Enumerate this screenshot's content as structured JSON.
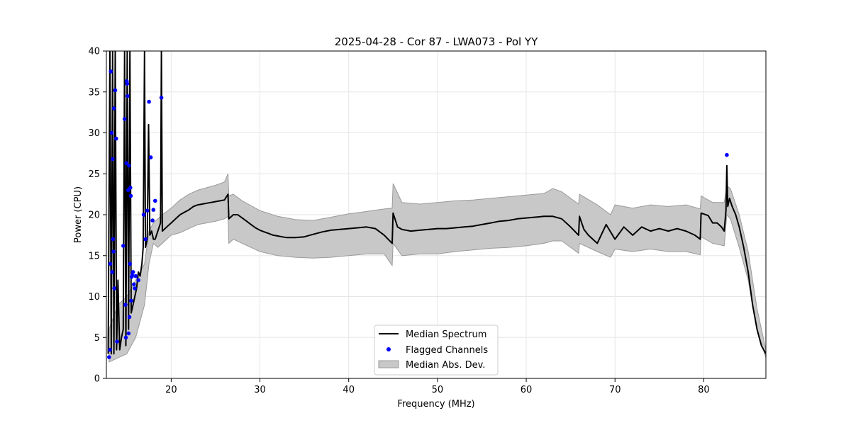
{
  "chart_data": {
    "type": "line",
    "title": "2025-04-28 - Cor 87 - LWA073 - Pol YY",
    "xlabel": "Frequency (MHz)",
    "ylabel": "Power (CPU)",
    "xlim": [
      12.7,
      87.0
    ],
    "ylim": [
      0,
      40
    ],
    "grid": true,
    "legend_placement": "bottom-center",
    "x_ticks": [
      20,
      30,
      40,
      50,
      60,
      70,
      80
    ],
    "y_ticks": [
      0,
      5,
      10,
      15,
      20,
      25,
      30,
      35,
      40
    ],
    "colors": {
      "median": "#000000",
      "flagged": "#0000ff",
      "mad_fill": "#c8c8c8",
      "mad_edge": "#9a9a9a"
    },
    "legend": [
      {
        "label": "Median Spectrum",
        "kind": "line"
      },
      {
        "label": "Flagged Channels",
        "kind": "dot"
      },
      {
        "label": "Median Abs. Dev.",
        "kind": "patch"
      }
    ],
    "series": [
      {
        "name": "Median Spectrum",
        "x": [
          12.9,
          13.1,
          13.25,
          13.4,
          13.55,
          13.7,
          13.85,
          14.0,
          14.2,
          14.4,
          14.6,
          14.75,
          14.9,
          15.05,
          15.2,
          15.35,
          15.5,
          15.7,
          15.9,
          16.1,
          16.3,
          16.5,
          16.7,
          16.85,
          17.0,
          17.1,
          17.3,
          17.45,
          17.6,
          17.8,
          18.0,
          18.2,
          18.5,
          18.8,
          18.9,
          19.0,
          19.5,
          20.0,
          20.5,
          21.0,
          21.5,
          22.0,
          22.5,
          23.0,
          23.5,
          24.0,
          24.5,
          25.0,
          25.5,
          26.0,
          26.4,
          26.5,
          27.0,
          27.5,
          28.0,
          28.5,
          29.0,
          29.5,
          30.0,
          30.5,
          31.0,
          31.5,
          32.0,
          32.5,
          33.0,
          33.5,
          34.0,
          35.0,
          36.0,
          37.0,
          38.0,
          39.0,
          40.0,
          41.0,
          42.0,
          43.0,
          44.0,
          44.9,
          45.0,
          45.5,
          46.0,
          47.0,
          48.0,
          49.0,
          50.0,
          51.0,
          52.0,
          53.0,
          54.0,
          55.0,
          56.0,
          57.0,
          58.0,
          59.0,
          60.0,
          61.0,
          62.0,
          63.0,
          64.0,
          65.0,
          65.9,
          66.0,
          66.5,
          67.0,
          68.0,
          69.0,
          70.0,
          71.0,
          72.0,
          73.0,
          74.0,
          75.0,
          76.0,
          77.0,
          78.0,
          79.0,
          79.6,
          79.7,
          80.5,
          81.0,
          81.5,
          82.0,
          82.3,
          82.5,
          82.6,
          82.7,
          82.9,
          83.2,
          83.6,
          84.0,
          84.5,
          85.0,
          85.5,
          86.0,
          86.5,
          87.0
        ],
        "y": [
          3,
          40,
          3,
          40,
          3,
          40,
          3.5,
          12,
          3.5,
          5,
          6,
          40,
          4,
          40,
          6,
          40,
          8,
          9,
          10,
          11,
          13,
          12.5,
          14,
          16,
          40,
          16,
          17,
          31,
          17.5,
          18,
          17,
          17,
          18,
          19,
          40,
          18,
          18.5,
          19,
          19.5,
          20,
          20.3,
          20.6,
          21,
          21.2,
          21.3,
          21.4,
          21.5,
          21.6,
          21.7,
          21.8,
          22.5,
          19.5,
          20,
          20,
          19.6,
          19.2,
          18.8,
          18.4,
          18.1,
          17.9,
          17.7,
          17.5,
          17.4,
          17.3,
          17.2,
          17.2,
          17.2,
          17.3,
          17.6,
          17.9,
          18.1,
          18.2,
          18.3,
          18.4,
          18.5,
          18.3,
          17.5,
          16.5,
          20.2,
          18.5,
          18.2,
          18,
          18.1,
          18.2,
          18.3,
          18.3,
          18.4,
          18.5,
          18.6,
          18.8,
          19,
          19.2,
          19.3,
          19.5,
          19.6,
          19.7,
          19.8,
          19.8,
          19.5,
          18.5,
          17.5,
          19.8,
          18.2,
          17.5,
          16.5,
          18.8,
          17,
          18.5,
          17.5,
          18.5,
          18,
          18.3,
          18,
          18.3,
          18,
          17.5,
          17,
          20.2,
          19.9,
          19,
          19,
          18.5,
          18,
          20.5,
          26,
          21,
          22,
          21,
          20,
          18.5,
          16,
          13,
          9,
          6,
          4,
          3
        ]
      },
      {
        "name": "Median Abs. Dev.",
        "x": [
          13.0,
          14.0,
          15.0,
          15.5,
          16.0,
          16.5,
          17.0,
          17.5,
          18.0,
          18.5,
          19.0,
          20.0,
          21.0,
          22.0,
          23.0,
          24.0,
          25.0,
          26.0,
          26.4,
          26.5,
          27.0,
          28.0,
          30.0,
          32.0,
          34.0,
          36.0,
          38.0,
          40.0,
          42.0,
          44.0,
          44.9,
          45.0,
          46.0,
          48.0,
          50.0,
          52.0,
          54.0,
          56.0,
          58.0,
          60.0,
          62.0,
          63.0,
          64.0,
          65.9,
          66.0,
          68.0,
          69.5,
          70.0,
          72.0,
          74.0,
          76.0,
          78.0,
          79.6,
          79.7,
          81.0,
          82.3,
          82.6,
          83.0,
          84.0,
          85.0,
          86.0,
          87.0
        ],
        "upper": [
          6,
          9,
          10,
          11,
          12,
          13,
          14,
          18,
          19,
          19.5,
          20,
          20.8,
          21.8,
          22.5,
          23,
          23.3,
          23.6,
          24,
          25,
          22.3,
          22.5,
          21.7,
          20.5,
          19.8,
          19.4,
          19.3,
          19.7,
          20.1,
          20.4,
          20.7,
          20.8,
          23.8,
          21.5,
          21.3,
          21.5,
          21.7,
          21.8,
          22,
          22.2,
          22.4,
          22.6,
          23.2,
          22.8,
          21.3,
          22.5,
          21.2,
          20,
          21.2,
          20.8,
          21.2,
          21,
          21.2,
          20.7,
          22.3,
          21.5,
          21.5,
          23.5,
          23.2,
          20,
          15.5,
          8.5,
          3.5
        ],
        "lower": [
          2,
          2.5,
          3,
          4,
          5,
          7,
          9,
          14,
          16.5,
          16,
          16.5,
          17.5,
          17.8,
          18.3,
          18.8,
          19,
          19.2,
          19.5,
          19.8,
          16.5,
          17,
          16.5,
          15.5,
          15,
          14.8,
          14.7,
          14.8,
          15,
          15.2,
          15.2,
          13.8,
          16.5,
          15,
          15.2,
          15.2,
          15.5,
          15.7,
          15.9,
          16,
          16.2,
          16.5,
          16.8,
          16.8,
          15.3,
          16.5,
          15.5,
          14.8,
          15.8,
          15.5,
          15.8,
          15.5,
          15.5,
          15.1,
          17.3,
          16.5,
          16.2,
          20,
          19.5,
          16,
          12,
          6,
          2.5
        ]
      },
      {
        "name": "Flagged Channels",
        "x": [
          13.0,
          13.1,
          13.15,
          13.2,
          13.3,
          13.35,
          13.4,
          13.45,
          13.5,
          13.55,
          13.6,
          13.7,
          13.8,
          13.9,
          14.6,
          14.75,
          14.85,
          14.9,
          14.95,
          15.0,
          15.05,
          15.1,
          15.15,
          15.2,
          15.25,
          15.3,
          15.35,
          15.4,
          15.45,
          15.5,
          15.55,
          15.6,
          15.7,
          15.8,
          15.9,
          16.0,
          16.3,
          16.9,
          17.1,
          17.3,
          17.5,
          17.7,
          17.9,
          18.0,
          18.2,
          18.9,
          82.6
        ],
        "y": [
          2.6,
          3.5,
          14,
          37.5,
          30,
          13,
          26.8,
          17,
          15.5,
          33,
          11,
          35.2,
          29.3,
          4.5,
          16.2,
          31.7,
          9,
          5,
          26.3,
          36.3,
          36,
          34.5,
          23,
          5.5,
          26,
          7.5,
          14,
          23.3,
          22.3,
          9.5,
          12.4,
          12.6,
          13,
          11.5,
          11,
          12.5,
          12,
          20,
          17,
          20.5,
          33.8,
          27,
          19.3,
          20.6,
          21.7,
          34.3,
          27.3
        ]
      }
    ]
  }
}
